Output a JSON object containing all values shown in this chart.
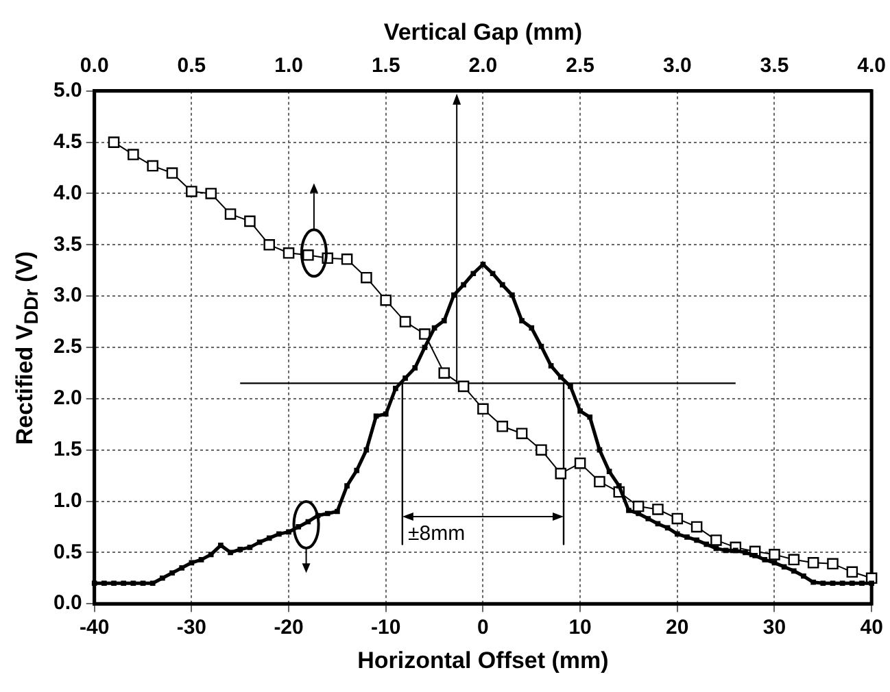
{
  "chart_data": {
    "type": "line",
    "xlabel": "Horizontal Offset (mm)",
    "x2label": "Vertical Gap (mm)",
    "ylabel": "Rectified V$_{DDr}$ (V)",
    "xlim": [
      -40,
      40
    ],
    "xticks": [
      -40,
      -30,
      -20,
      -10,
      0,
      10,
      20,
      30,
      40
    ],
    "x2lim": [
      0,
      4
    ],
    "x2ticks": [
      {
        "value": 0,
        "label": "0.0"
      },
      {
        "value": 0.5,
        "label": "0.5"
      },
      {
        "value": 1,
        "label": "1.0"
      },
      {
        "value": 1.5,
        "label": "1.5"
      },
      {
        "value": 2,
        "label": "2.0"
      },
      {
        "value": 2.5,
        "label": "2.5"
      },
      {
        "value": 3,
        "label": "3.0"
      },
      {
        "value": 3.5,
        "label": "3.5"
      },
      {
        "value": 4,
        "label": "4.0"
      }
    ],
    "ylim": [
      0,
      5
    ],
    "yticks": [
      {
        "value": 0,
        "label": "0.0"
      },
      {
        "value": 0.5,
        "label": "0.5"
      },
      {
        "value": 1,
        "label": "1.0"
      },
      {
        "value": 1.5,
        "label": "1.5"
      },
      {
        "value": 2,
        "label": "2.0"
      },
      {
        "value": 2.5,
        "label": "2.5"
      },
      {
        "value": 3,
        "label": "3.0"
      },
      {
        "value": 3.5,
        "label": "3.5"
      },
      {
        "value": 4,
        "label": "4.0"
      },
      {
        "value": 4.5,
        "label": "4.5"
      },
      {
        "value": 5,
        "label": "5.0"
      }
    ],
    "grid": true,
    "legend": false,
    "series": [
      {
        "color": "#000000",
        "marker": "square",
        "line_style": "solid",
        "x": [
          -40,
          -39,
          -38,
          -37,
          -36,
          -35,
          -34,
          -33,
          -32,
          -31,
          -30,
          -29,
          -28,
          -27,
          -26,
          -25,
          -24,
          -23,
          -22,
          -21,
          -20,
          -19,
          -18,
          -17,
          -16,
          -15,
          -14,
          -13,
          -12,
          -11,
          -10,
          -9,
          -8,
          -7,
          -6,
          -5,
          -4,
          -3,
          -2,
          -1,
          0,
          1,
          2,
          3,
          4,
          5,
          6,
          7,
          8,
          9,
          10,
          11,
          12,
          13,
          14,
          15,
          16,
          17,
          18,
          19,
          20,
          21,
          22,
          23,
          24,
          25,
          26,
          27,
          28,
          29,
          30,
          31,
          32,
          33,
          34,
          35,
          36,
          37,
          38,
          39,
          40
        ],
        "values": [
          0.2,
          0.2,
          0.2,
          0.2,
          0.2,
          0.2,
          0.2,
          0.25,
          0.3,
          0.35,
          0.4,
          0.43,
          0.48,
          0.57,
          0.5,
          0.53,
          0.55,
          0.6,
          0.64,
          0.68,
          0.7,
          0.75,
          0.8,
          0.86,
          0.88,
          0.9,
          1.15,
          1.3,
          1.5,
          1.83,
          1.85,
          2.1,
          2.2,
          2.3,
          2.5,
          2.69,
          2.76,
          3.01,
          3.11,
          3.22,
          3.31,
          3.22,
          3.11,
          3.01,
          2.76,
          2.69,
          2.51,
          2.32,
          2.21,
          2.12,
          1.88,
          1.82,
          1.5,
          1.29,
          1.15,
          0.91,
          0.88,
          0.83,
          0.78,
          0.74,
          0.68,
          0.65,
          0.62,
          0.58,
          0.54,
          0.52,
          0.52,
          0.5,
          0.47,
          0.43,
          0.4,
          0.36,
          0.32,
          0.27,
          0.21,
          0.2,
          0.2,
          0.2,
          0.2,
          0.2,
          0.2
        ]
      },
      {
        "color": "#000000",
        "marker": "square",
        "line_style": "solid",
        "axis": "x2",
        "x": [
          0.1,
          0.2,
          0.3,
          0.4,
          0.5,
          0.6,
          0.7,
          0.8,
          0.9,
          1.0,
          1.1,
          1.2,
          1.3,
          1.4,
          1.5,
          1.6,
          1.7,
          1.8,
          1.9,
          2.0,
          2.1,
          2.2,
          2.3,
          2.4,
          2.5,
          2.6,
          2.7,
          2.8,
          2.9,
          3.0,
          3.1,
          3.2,
          3.3,
          3.4,
          3.5,
          3.6,
          3.7,
          3.8,
          3.9,
          4.0
        ],
        "values": [
          4.5,
          4.38,
          4.27,
          4.2,
          4.02,
          4.0,
          3.8,
          3.73,
          3.5,
          3.42,
          3.4,
          3.37,
          3.36,
          3.18,
          2.96,
          2.75,
          2.63,
          2.25,
          2.12,
          1.9,
          1.73,
          1.66,
          1.5,
          1.27,
          1.37,
          1.19,
          1.09,
          0.95,
          0.92,
          0.83,
          0.75,
          0.62,
          0.55,
          0.51,
          0.48,
          0.43,
          0.4,
          0.39,
          0.31,
          0.25
        ]
      },
      {
        "color": "#000000",
        "marker": "none",
        "line_style": "solid",
        "x": [
          -25,
          26
        ],
        "values": [
          2.15,
          2.15
        ]
      },
      {
        "color": "#000000",
        "marker": "none",
        "line_style": "solid",
        "x": [
          -8.3,
          -8.3
        ],
        "values": [
          2.15,
          0.58
        ]
      },
      {
        "color": "#000000",
        "marker": "none",
        "line_style": "solid",
        "x": [
          8.3,
          8.3
        ],
        "values": [
          2.15,
          0.58
        ]
      }
    ],
    "annotations": [
      {
        "text": "±8mm",
        "x": -8,
        "y": 0.68
      }
    ]
  }
}
